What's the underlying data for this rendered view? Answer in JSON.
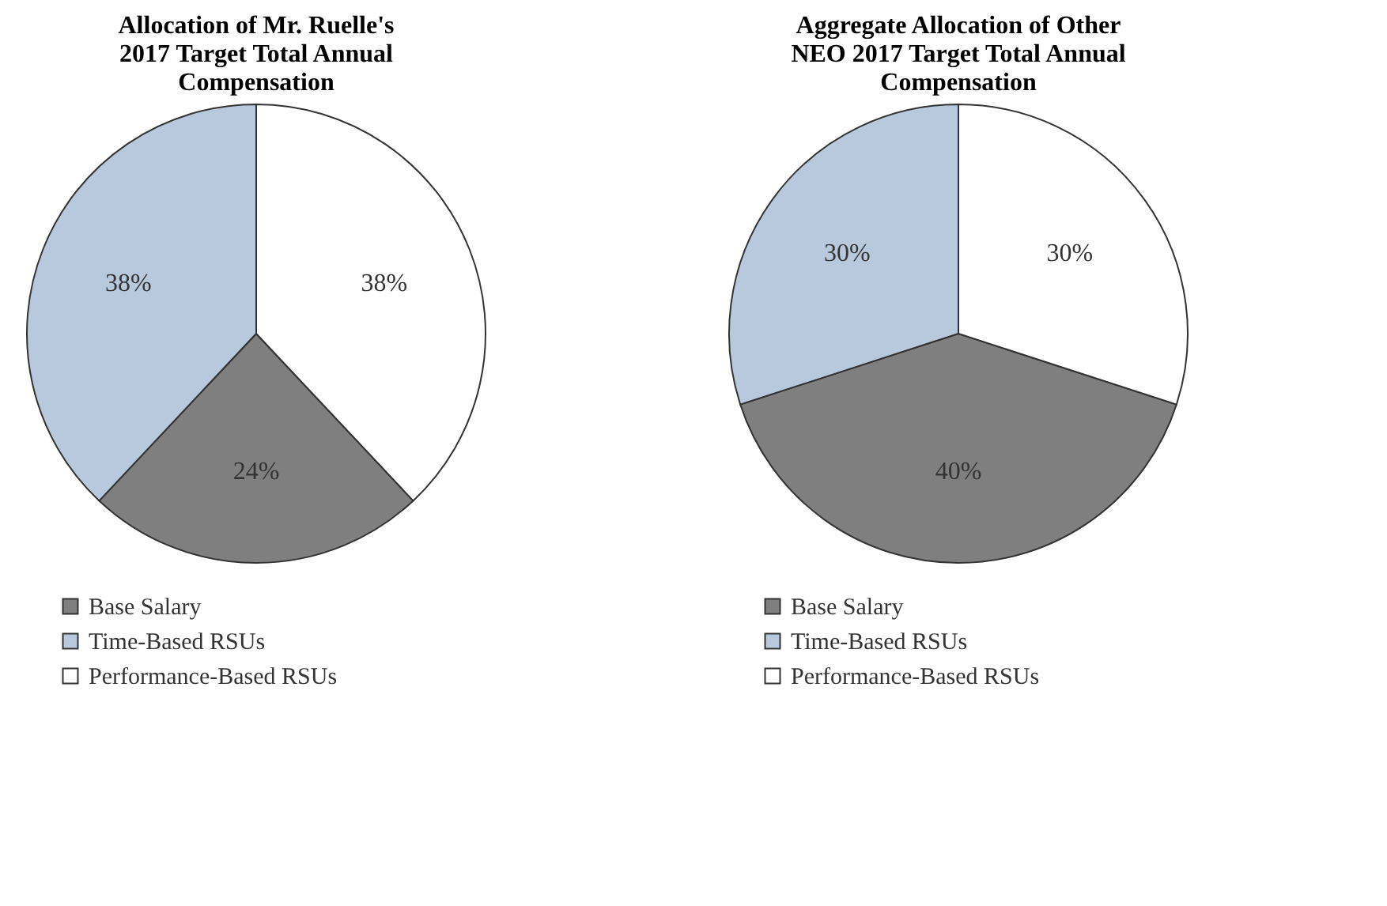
{
  "chart_data": [
    {
      "type": "pie",
      "title": "Allocation of Mr. Ruelle's 2017 Target Total Annual Compensation",
      "categories": [
        "Base Salary",
        "Time-Based RSUs",
        "Performance-Based RSUs"
      ],
      "values": [
        24,
        38,
        38
      ],
      "colors": [
        "#7f7f7f",
        "#b9c9dd",
        "#ffffff"
      ],
      "value_labels": [
        "24%",
        "38%",
        "38%"
      ],
      "legend": "bottom left"
    },
    {
      "type": "pie",
      "title": "Aggregate Allocation of Other NEO 2017 Target Total Annual Compensation",
      "categories": [
        "Base Salary",
        "Time-Based RSUs",
        "Performance-Based RSUs"
      ],
      "values": [
        40,
        30,
        30
      ],
      "colors": [
        "#7f7f7f",
        "#b9c9dd",
        "#ffffff"
      ],
      "value_labels": [
        "40%",
        "30%",
        "30%"
      ],
      "legend": "bottom left"
    }
  ]
}
